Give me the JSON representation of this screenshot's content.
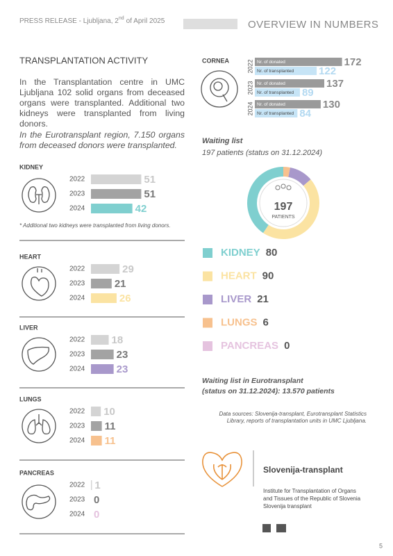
{
  "header": {
    "date_prefix": "PRESS RELEASE - Ljubljana, 2",
    "date_sup": "nd",
    "date_suffix": "of April 2025",
    "section": "OVERVIEW IN NUMBERS"
  },
  "activity": {
    "title": "TRANSPLANTATION ACTIVITY",
    "text": "In the Transplantation centre in UMC Ljubljana 102 solid organs from deceased organs were transplanted. Additional two kidneys were transplanted from living donors.",
    "eurotransplant_text": "In the Eurotransplant region, 7.150 organs from deceased donors were transplanted."
  },
  "organs": [
    {
      "name": "KIDNEY",
      "years": [
        2022,
        2023,
        2024
      ],
      "values": [
        51,
        51,
        42
      ],
      "colors": [
        "#d4d4d4",
        "#a3a3a3",
        "#7fcfcf"
      ],
      "note": "* Additional two kidneys were transplanted from living donors."
    },
    {
      "name": "HEART",
      "years": [
        2022,
        2023,
        2024
      ],
      "values": [
        29,
        21,
        26
      ],
      "colors": [
        "#d4d4d4",
        "#a3a3a3",
        "#fbe3a2"
      ]
    },
    {
      "name": "LIVER",
      "years": [
        2022,
        2023,
        2024
      ],
      "values": [
        18,
        23,
        23
      ],
      "colors": [
        "#d4d4d4",
        "#a3a3a3",
        "#a898cb"
      ]
    },
    {
      "name": "LUNGS",
      "years": [
        2022,
        2023,
        2024
      ],
      "values": [
        10,
        11,
        11
      ],
      "colors": [
        "#d4d4d4",
        "#a3a3a3",
        "#f7c18e"
      ]
    },
    {
      "name": "PANCREAS",
      "years": [
        2022,
        2023,
        2024
      ],
      "values": [
        1,
        0,
        0
      ],
      "colors": [
        "#d4d4d4",
        "#a3a3a3",
        "#e5c3df"
      ]
    }
  ],
  "cornea": {
    "title": "CORNEA",
    "years": [
      2022,
      2023,
      2024
    ],
    "donated_label": "Nr. of donated",
    "transplanted_label": "Nr. of transplanted",
    "donated": [
      172,
      137,
      130
    ],
    "transplanted": [
      122,
      89,
      84
    ],
    "donated_color": "#9a9a9a",
    "transplanted_color": "#c6e4f6"
  },
  "waiting_list": {
    "title": "Waiting list",
    "subtitle": "197 patients (status on 31.12.2024)",
    "center_value": 197,
    "center_label": "PATIENTS",
    "items": [
      {
        "name": "KIDNEY",
        "value": 80,
        "color": "#7fcfcf"
      },
      {
        "name": "HEART",
        "value": 90,
        "color": "#fbe3a2"
      },
      {
        "name": "LIVER",
        "value": 21,
        "color": "#a898cb"
      },
      {
        "name": "LUNGS",
        "value": 6,
        "color": "#f7c18e"
      },
      {
        "name": "PANCREAS",
        "value": 0,
        "color": "#e5c3df"
      }
    ]
  },
  "eurotransplant": [
    "Waiting list in Eurotransplant",
    "(status on 31.12.2024): 13.570 patients"
  ],
  "sources": [
    "Data sources: Slovenija-transplant, Eurotransplant Statistics",
    "Library, reports of transplantation units in UMC Ljubljana."
  ],
  "logo": {
    "name": "Slovenija-transplant",
    "lines": [
      "Institute for Transplantation of Organs",
      "and Tissues of the Republic of Slovenia",
      "Slovenija transplant"
    ]
  },
  "page_number": 5
}
